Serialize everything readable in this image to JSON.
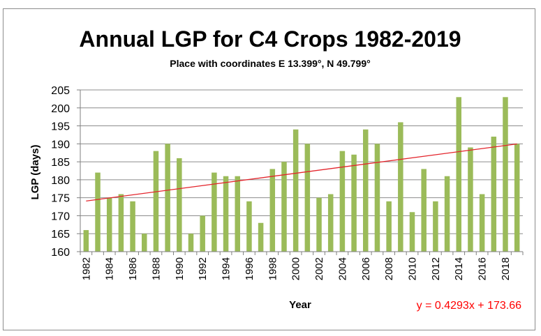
{
  "chart_data": {
    "type": "bar",
    "title": "Annual LGP for C4 Crops 1982-2019",
    "subtitle": "Place with coordinates E 13.399°, N 49.799°",
    "xlabel": "Year",
    "ylabel": "LGP (days)",
    "ylim": [
      160,
      205
    ],
    "yticks": [
      "160",
      "165",
      "170",
      "175",
      "180",
      "185",
      "190",
      "195",
      "200",
      "205"
    ],
    "categories": [
      "1982",
      "1983",
      "1984",
      "1985",
      "1986",
      "1987",
      "1988",
      "1989",
      "1990",
      "1991",
      "1992",
      "1993",
      "1994",
      "1995",
      "1996",
      "1997",
      "1998",
      "1999",
      "2000",
      "2001",
      "2002",
      "2003",
      "2004",
      "2005",
      "2006",
      "2007",
      "2008",
      "2009",
      "2010",
      "2011",
      "2012",
      "2013",
      "2014",
      "2015",
      "2016",
      "2017",
      "2018",
      "2019"
    ],
    "xtick_labels": [
      "1982",
      "1984",
      "1986",
      "1988",
      "1990",
      "1992",
      "1994",
      "1996",
      "1998",
      "2000",
      "2002",
      "2004",
      "2006",
      "2008",
      "2010",
      "2012",
      "2014",
      "2016",
      "2018"
    ],
    "values": [
      166,
      182,
      175,
      176,
      174,
      165,
      188,
      190,
      186,
      165,
      170,
      182,
      181,
      181,
      174,
      168,
      183,
      185,
      194,
      190,
      175,
      176,
      188,
      187,
      194,
      190,
      174,
      196,
      171,
      183,
      174,
      181,
      203,
      189,
      176,
      192,
      203,
      190
    ],
    "trendline": {
      "slope": 0.4293,
      "intercept": 173.66,
      "label": "y = 0.4293x + 173.66"
    },
    "grid": true,
    "legend": "none",
    "colors": {
      "bar": "#9bbb59",
      "trend": "#e3242b",
      "grid": "#8c8c8c",
      "equation": "#ff0000"
    }
  }
}
